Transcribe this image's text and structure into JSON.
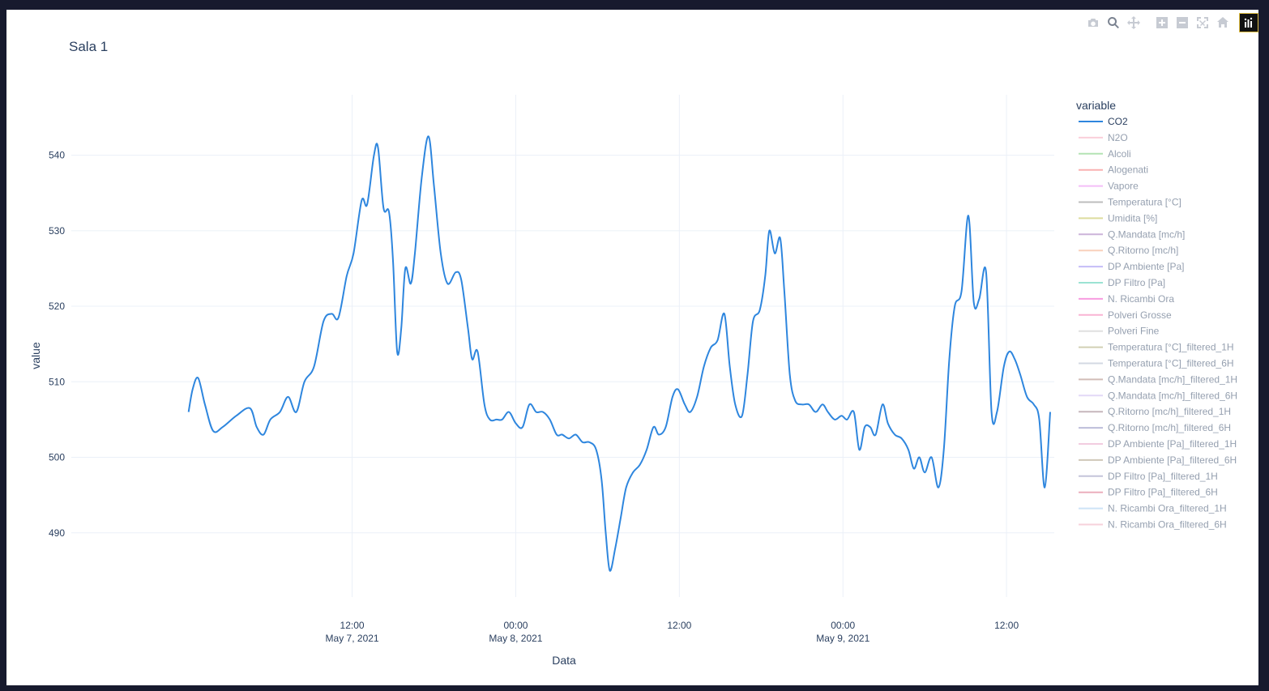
{
  "chart_data": {
    "type": "line",
    "title": "Sala 1",
    "xlabel": "Data",
    "ylabel": "value",
    "ylim": [
      481.5,
      548
    ],
    "yticks": [
      490,
      500,
      510,
      520,
      530,
      540
    ],
    "x_range_hours": [
      -8.6,
      63.5
    ],
    "xticks": [
      {
        "hours": 12,
        "line1": "12:00",
        "line2": "May 7, 2021"
      },
      {
        "hours": 24,
        "line1": "00:00",
        "line2": "May 8, 2021"
      },
      {
        "hours": 36,
        "line1": "12:00",
        "line2": ""
      },
      {
        "hours": 48,
        "line1": "00:00",
        "line2": "May 9, 2021"
      },
      {
        "hours": 60,
        "line1": "12:00",
        "line2": ""
      }
    ],
    "grid": true,
    "legend_title": "variable",
    "legend_placement": "right",
    "series": [
      {
        "name": "CO2",
        "color": "#2e86de",
        "visible": true,
        "points": [
          [
            0.0,
            506
          ],
          [
            0.3,
            509
          ],
          [
            0.7,
            510.5
          ],
          [
            1.2,
            507
          ],
          [
            1.8,
            503.5
          ],
          [
            2.5,
            504
          ],
          [
            3.5,
            505.5
          ],
          [
            4.5,
            506.5
          ],
          [
            5.0,
            504
          ],
          [
            5.5,
            503
          ],
          [
            6.0,
            505
          ],
          [
            6.7,
            506
          ],
          [
            7.3,
            508
          ],
          [
            7.9,
            506
          ],
          [
            8.5,
            510
          ],
          [
            9.2,
            512
          ],
          [
            9.9,
            518
          ],
          [
            10.5,
            519
          ],
          [
            11.0,
            518.5
          ],
          [
            11.6,
            524
          ],
          [
            12.1,
            527
          ],
          [
            12.7,
            534
          ],
          [
            13.1,
            533.5
          ],
          [
            13.6,
            540
          ],
          [
            13.9,
            541
          ],
          [
            14.3,
            533
          ],
          [
            14.7,
            532.5
          ],
          [
            15.0,
            526
          ],
          [
            15.3,
            514
          ],
          [
            15.6,
            517
          ],
          [
            15.9,
            525
          ],
          [
            16.3,
            523
          ],
          [
            16.6,
            527
          ],
          [
            17.1,
            537
          ],
          [
            17.6,
            542.5
          ],
          [
            18.0,
            536
          ],
          [
            18.5,
            527
          ],
          [
            19.0,
            523
          ],
          [
            19.6,
            524.5
          ],
          [
            20.0,
            523.5
          ],
          [
            20.5,
            517
          ],
          [
            20.8,
            513
          ],
          [
            21.2,
            514
          ],
          [
            21.7,
            507
          ],
          [
            22.1,
            505
          ],
          [
            22.6,
            505
          ],
          [
            23.0,
            505
          ],
          [
            23.5,
            506
          ],
          [
            24.0,
            504.5
          ],
          [
            24.5,
            504
          ],
          [
            25.0,
            507
          ],
          [
            25.5,
            506
          ],
          [
            26.0,
            506
          ],
          [
            26.5,
            505
          ],
          [
            27.0,
            503
          ],
          [
            27.4,
            503
          ],
          [
            27.9,
            502.5
          ],
          [
            28.4,
            503
          ],
          [
            28.9,
            502
          ],
          [
            29.4,
            502
          ],
          [
            29.9,
            501
          ],
          [
            30.3,
            497
          ],
          [
            30.6,
            490
          ],
          [
            30.9,
            485
          ],
          [
            31.3,
            488
          ],
          [
            31.7,
            492
          ],
          [
            32.1,
            496
          ],
          [
            32.6,
            498
          ],
          [
            33.1,
            499
          ],
          [
            33.6,
            501
          ],
          [
            34.1,
            504
          ],
          [
            34.5,
            503
          ],
          [
            35.0,
            504
          ],
          [
            35.5,
            508
          ],
          [
            35.9,
            509
          ],
          [
            36.4,
            507
          ],
          [
            36.8,
            506
          ],
          [
            37.3,
            508
          ],
          [
            37.8,
            512
          ],
          [
            38.3,
            514.5
          ],
          [
            38.8,
            515.5
          ],
          [
            39.3,
            519
          ],
          [
            39.7,
            512
          ],
          [
            40.1,
            507
          ],
          [
            40.6,
            505.5
          ],
          [
            41.0,
            511
          ],
          [
            41.4,
            518
          ],
          [
            41.9,
            519.5
          ],
          [
            42.3,
            524
          ],
          [
            42.6,
            530
          ],
          [
            43.0,
            527
          ],
          [
            43.4,
            529
          ],
          [
            43.7,
            522
          ],
          [
            44.1,
            511
          ],
          [
            44.5,
            507.5
          ],
          [
            45.0,
            507
          ],
          [
            45.5,
            507
          ],
          [
            46.0,
            506
          ],
          [
            46.5,
            507
          ],
          [
            46.9,
            506
          ],
          [
            47.4,
            505
          ],
          [
            47.9,
            505.5
          ],
          [
            48.3,
            505
          ],
          [
            48.8,
            506
          ],
          [
            49.2,
            501
          ],
          [
            49.6,
            504
          ],
          [
            50.0,
            504
          ],
          [
            50.4,
            503
          ],
          [
            50.9,
            507
          ],
          [
            51.3,
            504.5
          ],
          [
            51.8,
            503
          ],
          [
            52.3,
            502.5
          ],
          [
            52.8,
            501
          ],
          [
            53.2,
            498.5
          ],
          [
            53.6,
            500
          ],
          [
            54.0,
            498
          ],
          [
            54.5,
            500
          ],
          [
            55.0,
            496
          ],
          [
            55.4,
            501
          ],
          [
            55.8,
            513
          ],
          [
            56.2,
            520
          ],
          [
            56.7,
            522
          ],
          [
            57.2,
            532
          ],
          [
            57.6,
            520.5
          ],
          [
            58.0,
            521
          ],
          [
            58.5,
            524.5
          ],
          [
            58.9,
            506
          ],
          [
            59.3,
            506
          ],
          [
            59.8,
            512
          ],
          [
            60.2,
            514
          ],
          [
            60.6,
            513
          ],
          [
            61.0,
            511
          ],
          [
            61.5,
            508
          ],
          [
            62.0,
            507
          ],
          [
            62.4,
            505
          ],
          [
            62.8,
            496
          ],
          [
            63.2,
            506
          ]
        ]
      },
      {
        "name": "N2O",
        "color": "#f7a1b7",
        "visible": false,
        "points": []
      },
      {
        "name": "Alcoli",
        "color": "#6cc86c",
        "visible": false,
        "points": []
      },
      {
        "name": "Alogenati",
        "color": "#f56565",
        "visible": false,
        "points": []
      },
      {
        "name": "Vapore",
        "color": "#ea7ff2",
        "visible": false,
        "points": []
      },
      {
        "name": "Temperatura [°C]",
        "color": "#7d7d7d",
        "visible": false,
        "points": []
      },
      {
        "name": "Umidita [%]",
        "color": "#bdbb3d",
        "visible": false,
        "points": []
      },
      {
        "name": "Q.Mandata [mc/h]",
        "color": "#9b6bb5",
        "visible": false,
        "points": []
      },
      {
        "name": "Q.Ritorno [mc/h]",
        "color": "#f5a37a",
        "visible": false,
        "points": []
      },
      {
        "name": "DP Ambiente [Pa]",
        "color": "#8c7cf0",
        "visible": false,
        "points": []
      },
      {
        "name": "DP Filtro [Pa]",
        "color": "#39c9a8",
        "visible": false,
        "points": []
      },
      {
        "name": "N. Ricambi Ora",
        "color": "#f03cc2",
        "visible": false,
        "points": []
      },
      {
        "name": "Polveri Grosse",
        "color": "#f56aa8",
        "visible": false,
        "points": []
      },
      {
        "name": "Polveri Fine",
        "color": "#c0c0c0",
        "visible": false,
        "points": []
      },
      {
        "name": "Temperatura [°C]_filtered_1H",
        "color": "#a6a36c",
        "visible": false,
        "points": []
      },
      {
        "name": "Temperatura [°C]_filtered_6H",
        "color": "#a9b5c9",
        "visible": false,
        "points": []
      },
      {
        "name": "Q.Mandata [mc/h]_filtered_1H",
        "color": "#a77e73",
        "visible": false,
        "points": []
      },
      {
        "name": "Q.Mandata [mc/h]_filtered_6H",
        "color": "#c9b3f0",
        "visible": false,
        "points": []
      },
      {
        "name": "Q.Ritorno [mc/h]_filtered_1H",
        "color": "#8e6f7a",
        "visible": false,
        "points": []
      },
      {
        "name": "Q.Ritorno [mc/h]_filtered_6H",
        "color": "#7c7eb4",
        "visible": false,
        "points": []
      },
      {
        "name": "DP Ambiente [Pa]_filtered_1H",
        "color": "#e69ac3",
        "visible": false,
        "points": []
      },
      {
        "name": "DP Ambiente [Pa]_filtered_6H",
        "color": "#a39173",
        "visible": false,
        "points": []
      },
      {
        "name": "DP Filtro [Pa]_filtered_1H",
        "color": "#8a8bb5",
        "visible": false,
        "points": []
      },
      {
        "name": "DP Filtro [Pa]_filtered_6H",
        "color": "#d9607c",
        "visible": false,
        "points": []
      },
      {
        "name": "N. Ricambi Ora_filtered_1H",
        "color": "#9ec8f0",
        "visible": false,
        "points": []
      },
      {
        "name": "N. Ricambi Ora_filtered_6H",
        "color": "#f0a7b8",
        "visible": false,
        "points": []
      }
    ]
  },
  "modebar": {
    "icons": [
      "camera-icon",
      "zoom-icon",
      "pan-icon",
      "zoom-in-icon",
      "zoom-out-icon",
      "autoscale-icon",
      "reset-axes-icon",
      "plotly-logo-icon"
    ]
  }
}
